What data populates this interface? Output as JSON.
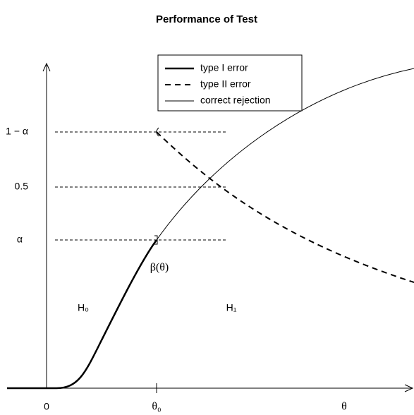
{
  "title": "Performance of Test",
  "legend": [
    "type I error",
    "type II error",
    "correct rejection"
  ],
  "y_labels": [
    "1 − α",
    "0.5",
    "α"
  ],
  "x_labels": [
    "0",
    "θ₀",
    "θ"
  ],
  "regions": [
    "H₀",
    "H₁"
  ],
  "curve_label": "β(θ)"
}
